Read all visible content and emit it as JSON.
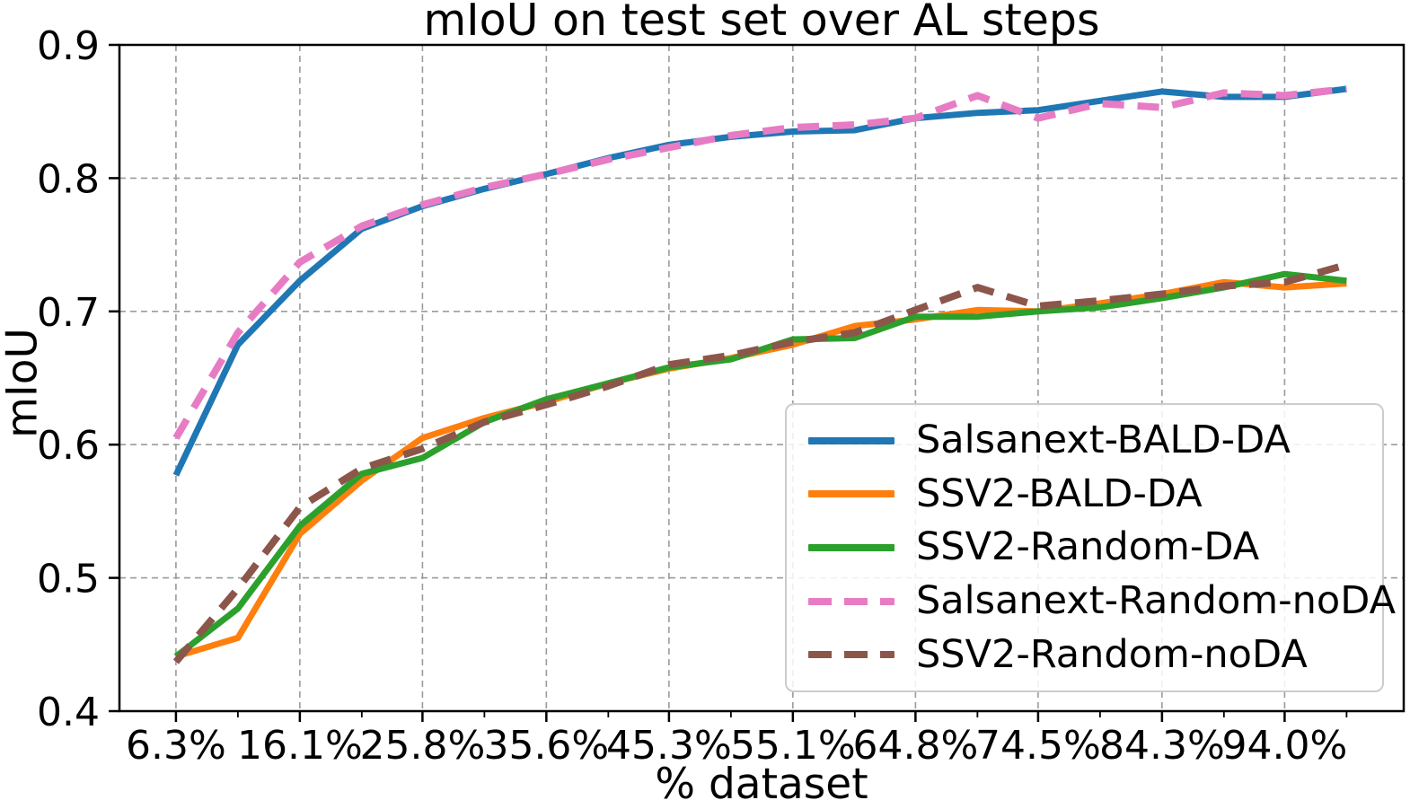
{
  "chart_data": {
    "type": "line",
    "title": "mIoU on test set over AL steps",
    "xlabel": "% dataset",
    "ylabel": "mIoU",
    "grid": true,
    "legend_position": "lower right",
    "xlim": [
      1.83,
      103.42
    ],
    "ylim": [
      0.4,
      0.9
    ],
    "x_percent": [
      6.3,
      11.2,
      16.1,
      21.0,
      25.8,
      30.7,
      35.6,
      40.5,
      45.3,
      50.2,
      55.1,
      60.0,
      64.8,
      69.7,
      74.5,
      79.4,
      84.3,
      89.2,
      94.0,
      98.9
    ],
    "x_tick_values": [
      6.3,
      16.1,
      25.8,
      35.6,
      45.3,
      55.1,
      64.8,
      74.5,
      84.3,
      94.0
    ],
    "x_tick_labels": [
      "6.3%",
      "16.1%",
      "25.8%",
      "35.6%",
      "45.3%",
      "55.1%",
      "64.8%",
      "74.5%",
      "84.3%",
      "94.0%"
    ],
    "x_minor_tick_values": [
      11.2,
      21.0,
      30.7,
      40.5,
      50.2,
      60.0,
      69.7,
      79.4,
      89.2,
      98.9
    ],
    "y_tick_values": [
      0.4,
      0.5,
      0.6,
      0.7,
      0.8,
      0.9
    ],
    "y_tick_labels": [
      "0.4",
      "0.5",
      "0.6",
      "0.7",
      "0.8",
      "0.9"
    ],
    "grid_color": "#9b9b9b",
    "spine_color": "#000000",
    "legend_border_color": "#cccccc",
    "series": [
      {
        "name": "Salsanext-BALD-DA",
        "color": "#1f77b4",
        "style": "solid",
        "values": [
          0.577,
          0.675,
          0.723,
          0.762,
          0.779,
          0.792,
          0.803,
          0.815,
          0.825,
          0.831,
          0.835,
          0.836,
          0.845,
          0.849,
          0.851,
          0.858,
          0.865,
          0.861,
          0.861,
          0.867
        ]
      },
      {
        "name": "SSV2-BALD-DA",
        "color": "#ff7f0e",
        "style": "solid",
        "values": [
          0.441,
          0.455,
          0.533,
          0.573,
          0.605,
          0.62,
          0.632,
          0.646,
          0.657,
          0.665,
          0.675,
          0.689,
          0.694,
          0.701,
          0.7,
          0.706,
          0.713,
          0.722,
          0.718,
          0.721
        ]
      },
      {
        "name": "SSV2-Random-DA",
        "color": "#2ca02c",
        "style": "solid",
        "values": [
          0.441,
          0.477,
          0.539,
          0.578,
          0.59,
          0.617,
          0.634,
          0.646,
          0.658,
          0.664,
          0.679,
          0.68,
          0.696,
          0.696,
          0.7,
          0.703,
          0.71,
          0.718,
          0.728,
          0.723
        ]
      },
      {
        "name": "Salsanext-Random-noDA",
        "color": "#e77cc4",
        "style": "dashed",
        "values": [
          0.605,
          0.684,
          0.737,
          0.764,
          0.78,
          0.793,
          0.803,
          0.814,
          0.823,
          0.832,
          0.838,
          0.84,
          0.845,
          0.862,
          0.845,
          0.856,
          0.853,
          0.864,
          0.862,
          0.867
        ]
      },
      {
        "name": "SSV2-Random-noDA",
        "color": "#8c564b",
        "style": "dashed",
        "values": [
          0.437,
          0.492,
          0.553,
          0.582,
          0.597,
          0.617,
          0.63,
          0.644,
          0.66,
          0.667,
          0.677,
          0.684,
          0.701,
          0.718,
          0.704,
          0.708,
          0.713,
          0.719,
          0.722,
          0.735
        ]
      }
    ]
  }
}
